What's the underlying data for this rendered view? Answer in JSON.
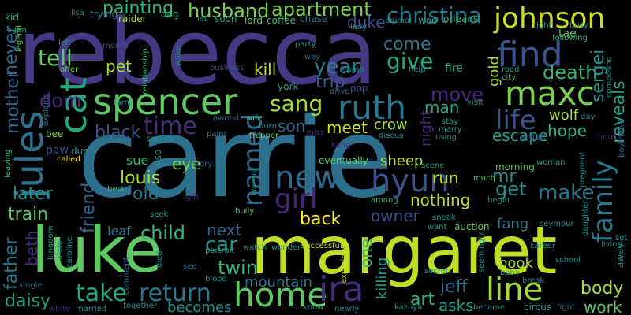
{
  "words": [
    {
      "text": "carrie",
      "color": "#2d708e"
    },
    {
      "text": "rebecca",
      "color": "#443983"
    },
    {
      "text": "margaret",
      "color": "#bddf26"
    },
    {
      "text": "luke",
      "color": "#5ec962"
    },
    {
      "text": "spencer",
      "color": "#5ec962"
    },
    {
      "text": "johnson",
      "color": "#c8e020"
    },
    {
      "text": "find",
      "color": "#3b528b"
    },
    {
      "text": "ruth",
      "color": "#2a788e"
    },
    {
      "text": "maxc",
      "color": "#7ad151"
    },
    {
      "text": "jules",
      "color": "#2c728e"
    },
    {
      "text": "cat",
      "color": "#22a884"
    },
    {
      "text": "life",
      "color": "#3b528b"
    },
    {
      "text": "home",
      "color": "#5ec962"
    },
    {
      "text": "line",
      "color": "#a5db36"
    },
    {
      "text": "take",
      "color": "#22a884"
    },
    {
      "text": "return",
      "color": "#2a788e"
    },
    {
      "text": "hyun",
      "color": "#3b528b"
    },
    {
      "text": "ira",
      "color": "#472d7b"
    },
    {
      "text": "family",
      "color": "#2a788e"
    },
    {
      "text": "time",
      "color": "#472d7b"
    },
    {
      "text": "named",
      "color": "#31688e"
    },
    {
      "text": "sang",
      "color": "#a5db36"
    },
    {
      "text": "christina",
      "color": "#2a788e"
    },
    {
      "text": "apartment",
      "color": "#7ad151"
    },
    {
      "text": "painting",
      "color": "#35b779"
    },
    {
      "text": "husband",
      "color": "#7ad151"
    },
    {
      "text": "new",
      "color": "#31688e"
    },
    {
      "text": "girl",
      "color": "#482878"
    },
    {
      "text": "dom",
      "color": "#482878"
    },
    {
      "text": "tell",
      "color": "#5ec962"
    },
    {
      "text": "year",
      "color": "#2a788e"
    },
    {
      "text": "give",
      "color": "#22a884"
    },
    {
      "text": "come",
      "color": "#2a788e"
    },
    {
      "text": "death",
      "color": "#35b779"
    },
    {
      "text": "move",
      "color": "#482878"
    },
    {
      "text": "man",
      "color": "#22a884"
    },
    {
      "text": "reveals",
      "color": "#1fa088"
    },
    {
      "text": "sergei",
      "color": "#21918c"
    },
    {
      "text": "mother",
      "color": "#31688e"
    },
    {
      "text": "never",
      "color": "#31688e"
    },
    {
      "text": "later",
      "color": "#21918c"
    },
    {
      "text": "train",
      "color": "#5ec962"
    },
    {
      "text": "father",
      "color": "#2a788e"
    },
    {
      "text": "beth",
      "color": "#482878"
    },
    {
      "text": "friend",
      "color": "#31688e"
    },
    {
      "text": "louis",
      "color": "#a5db36"
    },
    {
      "text": "old",
      "color": "#2a788e"
    },
    {
      "text": "black",
      "color": "#3b528b"
    },
    {
      "text": "back",
      "color": "#fde725"
    },
    {
      "text": "child",
      "color": "#35b779"
    },
    {
      "text": "next",
      "color": "#31688e"
    },
    {
      "text": "car",
      "color": "#21918c"
    },
    {
      "text": "twin",
      "color": "#35b779"
    },
    {
      "text": "daisy",
      "color": "#1fa088"
    },
    {
      "text": "becomes",
      "color": "#21918c"
    },
    {
      "text": "mountain",
      "color": "#2a788e"
    },
    {
      "text": "body",
      "color": "#a5db36"
    },
    {
      "text": "work",
      "color": "#5ec962"
    },
    {
      "text": "make",
      "color": "#2a788e"
    },
    {
      "text": "get",
      "color": "#21918c"
    },
    {
      "text": "mr",
      "color": "#21918c"
    },
    {
      "text": "nothing",
      "color": "#bddf26"
    },
    {
      "text": "owner",
      "color": "#3b528b"
    },
    {
      "text": "jeff",
      "color": "#31688e"
    },
    {
      "text": "art",
      "color": "#35b779"
    },
    {
      "text": "asks",
      "color": "#1fa088"
    },
    {
      "text": "hope",
      "color": "#35b779"
    },
    {
      "text": "escape",
      "color": "#1fa088"
    },
    {
      "text": "wolf",
      "color": "#a5db36"
    },
    {
      "text": "sheep",
      "color": "#bddf26"
    },
    {
      "text": "crow",
      "color": "#a5db36"
    },
    {
      "text": "meet",
      "color": "#c8e020"
    },
    {
      "text": "run",
      "color": "#bddf26"
    },
    {
      "text": "son",
      "color": "#31688e"
    },
    {
      "text": "kill",
      "color": "#bddf26"
    },
    {
      "text": "trip",
      "color": "#3b528b"
    },
    {
      "text": "duke",
      "color": "#3b528b"
    },
    {
      "text": "pet",
      "color": "#a5db36"
    },
    {
      "text": "gold",
      "color": "#a5db36"
    },
    {
      "text": "night",
      "color": "#482878"
    },
    {
      "text": "one",
      "color": "#35b779"
    },
    {
      "text": "killing",
      "color": "#1fa088"
    },
    {
      "text": "fang",
      "color": "#2a788e"
    },
    {
      "text": "book",
      "color": "#a5db36"
    },
    {
      "text": "leaf",
      "color": "#2a788e"
    },
    {
      "text": "eye",
      "color": "#7ad151"
    },
    {
      "text": "sue",
      "color": "#35b779"
    },
    {
      "text": "also",
      "color": "#21918c"
    },
    {
      "text": "paw",
      "color": "#3b528b"
    },
    {
      "text": "due",
      "color": "#21918c"
    },
    {
      "text": "called",
      "color": "#fde725"
    },
    {
      "text": "bee",
      "color": "#7ad151"
    },
    {
      "text": "kid",
      "color": "#35b779"
    },
    {
      "text": "lisa",
      "color": "#21918c"
    },
    {
      "text": "trying",
      "color": "#2a788e"
    },
    {
      "text": "raider",
      "color": "#a5db36"
    },
    {
      "text": "dog",
      "color": "#35b779"
    },
    {
      "text": "let",
      "color": "#21918c"
    },
    {
      "text": "soon",
      "color": "#1fa088"
    },
    {
      "text": "lord",
      "color": "#5ec962"
    },
    {
      "text": "coffee",
      "color": "#35b779"
    },
    {
      "text": "chase",
      "color": "#2a788e"
    },
    {
      "text": "animal",
      "color": "#21918c"
    },
    {
      "text": "woo",
      "color": "#1fa088"
    },
    {
      "text": "orleans",
      "color": "#35b779"
    },
    {
      "text": "right",
      "color": "#21918c"
    },
    {
      "text": "busy",
      "color": "#21918c"
    },
    {
      "text": "tae",
      "color": "#5ec962"
    },
    {
      "text": "following",
      "color": "#35b779"
    },
    {
      "text": "month",
      "color": "#3b528b"
    },
    {
      "text": "left",
      "color": "#21918c"
    },
    {
      "text": "logan",
      "color": "#1fa088"
    },
    {
      "text": "legend",
      "color": "#5ec962"
    },
    {
      "text": "offer",
      "color": "#7ad151"
    },
    {
      "text": "wake",
      "color": "#21918c"
    },
    {
      "text": "relationship",
      "color": "#35b779"
    },
    {
      "text": "business",
      "color": "#3b528b"
    },
    {
      "text": "party",
      "color": "#21918c"
    },
    {
      "text": "way",
      "color": "#31688e"
    },
    {
      "text": "fire",
      "color": "#1fa088"
    },
    {
      "text": "road",
      "color": "#1fa088"
    },
    {
      "text": "city",
      "color": "#35b779"
    },
    {
      "text": "compound",
      "color": "#21918c"
    },
    {
      "text": "lady",
      "color": "#2a788e"
    },
    {
      "text": "camp",
      "color": "#21918c"
    },
    {
      "text": "help",
      "color": "#21918c"
    },
    {
      "text": "york",
      "color": "#1fa088"
    },
    {
      "text": "drive",
      "color": "#31688e"
    },
    {
      "text": "pop",
      "color": "#3b528b"
    },
    {
      "text": "visit",
      "color": "#21918c"
    },
    {
      "text": "explains",
      "color": "#31688e"
    },
    {
      "text": "farm",
      "color": "#1fa088"
    },
    {
      "text": "service",
      "color": "#21918c"
    },
    {
      "text": "owned",
      "color": "#31688e"
    },
    {
      "text": "wife",
      "color": "#35b779"
    },
    {
      "text": "paint",
      "color": "#2a788e"
    },
    {
      "text": "burn",
      "color": "#21918c"
    },
    {
      "text": "trapper",
      "color": "#5ec962"
    },
    {
      "text": "miss",
      "color": "#482878"
    },
    {
      "text": "discus",
      "color": "#21918c"
    },
    {
      "text": "using",
      "color": "#21918c"
    },
    {
      "text": "stay",
      "color": "#1fa088"
    },
    {
      "text": "marry",
      "color": "#21918c"
    },
    {
      "text": "small",
      "color": "#3b528b"
    },
    {
      "text": "day",
      "color": "#21918c"
    },
    {
      "text": "boyfriend",
      "color": "#31688e"
    },
    {
      "text": "house",
      "color": "#482878"
    },
    {
      "text": "leaving",
      "color": "#35b779"
    },
    {
      "text": "story",
      "color": "#31688e"
    },
    {
      "text": "warrior",
      "color": "#21918c"
    },
    {
      "text": "kang",
      "color": "#482878"
    },
    {
      "text": "eventually",
      "color": "#5ec962"
    },
    {
      "text": "scene",
      "color": "#1fa088"
    },
    {
      "text": "morning",
      "color": "#5ec962"
    },
    {
      "text": "woman",
      "color": "#1fa088"
    },
    {
      "text": "pregnant",
      "color": "#21918c"
    },
    {
      "text": "best",
      "color": "#35b779"
    },
    {
      "text": "gift",
      "color": "#482878"
    },
    {
      "text": "much",
      "color": "#5ec962"
    },
    {
      "text": "among",
      "color": "#35b779"
    },
    {
      "text": "begin",
      "color": "#21918c"
    },
    {
      "text": "seymour",
      "color": "#21918c"
    },
    {
      "text": "kingdom",
      "color": "#1fa088"
    },
    {
      "text": "seek",
      "color": "#21918c"
    },
    {
      "text": "bully",
      "color": "#5ec962"
    },
    {
      "text": "want",
      "color": "#1fa088"
    },
    {
      "text": "sneak",
      "color": "#21918c"
    },
    {
      "text": "auction",
      "color": "#5ec962"
    },
    {
      "text": "daughter",
      "color": "#21918c"
    },
    {
      "text": "set",
      "color": "#21918c"
    },
    {
      "text": "living",
      "color": "#21918c"
    },
    {
      "text": "away",
      "color": "#21918c"
    },
    {
      "text": "alone",
      "color": "#21918c"
    },
    {
      "text": "caroline",
      "color": "#21918c"
    },
    {
      "text": "portrait",
      "color": "#1fa088"
    },
    {
      "text": "watch",
      "color": "#21918c"
    },
    {
      "text": "wonder",
      "color": "#21918c"
    },
    {
      "text": "successfully",
      "color": "#c8e020"
    },
    {
      "text": "experiment",
      "color": "#c8e020"
    },
    {
      "text": "seemingly",
      "color": "#21918c"
    },
    {
      "text": "career",
      "color": "#21918c"
    },
    {
      "text": "school",
      "color": "#21918c"
    },
    {
      "text": "single",
      "color": "#31688e"
    },
    {
      "text": "comment",
      "color": "#31688e"
    },
    {
      "text": "died",
      "color": "#21918c"
    },
    {
      "text": "see",
      "color": "#31688e"
    },
    {
      "text": "blood",
      "color": "#21918c"
    },
    {
      "text": "baby",
      "color": "#1fa088"
    },
    {
      "text": "break",
      "color": "#21918c"
    },
    {
      "text": "white",
      "color": "#482878"
    },
    {
      "text": "married",
      "color": "#21918c"
    },
    {
      "text": "together",
      "color": "#21918c"
    },
    {
      "text": "nearly",
      "color": "#21918c"
    },
    {
      "text": "became",
      "color": "#21918c"
    },
    {
      "text": "circus",
      "color": "#21918c"
    },
    {
      "text": "fight",
      "color": "#31688e"
    },
    {
      "text": "kazuya",
      "color": "#21918c"
    },
    {
      "text": "know",
      "color": "#1fa088"
    },
    {
      "text": "secret",
      "color": "#21918c"
    }
  ]
}
